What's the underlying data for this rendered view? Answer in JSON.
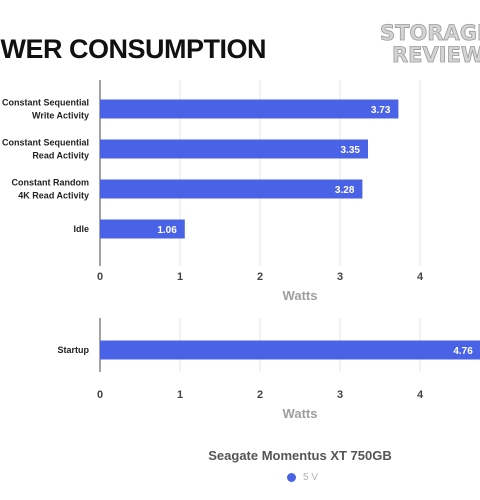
{
  "title": "OWER CONSUMPTION",
  "logo": {
    "text_top": "STORAGE",
    "text_bottom": "REVIEW.co"
  },
  "colors": {
    "bar": "#4a63e6",
    "grid": "#e6e6e6",
    "axis": "#444444"
  },
  "chart_data": [
    {
      "type": "bar",
      "orientation": "horizontal",
      "categories": [
        [
          "Constant Sequential",
          "Write Activity"
        ],
        [
          "Constant Sequential",
          "Read Activity"
        ],
        [
          "Constant Random",
          "4K Read Activity"
        ],
        [
          "Idle"
        ]
      ],
      "series": [
        {
          "name": "5 V",
          "values": [
            3.73,
            3.35,
            3.28,
            1.06
          ]
        }
      ],
      "value_labels": [
        "3.73",
        "3.35",
        "3.28",
        "1.06"
      ],
      "xlabel": "Watts",
      "xticks": [
        "0",
        "1",
        "2",
        "3",
        "4"
      ],
      "xlim": [
        0,
        4.76
      ],
      "grid": true
    },
    {
      "type": "bar",
      "orientation": "horizontal",
      "categories": [
        [
          "Startup"
        ]
      ],
      "series": [
        {
          "name": "5 V",
          "values": [
            4.76
          ]
        }
      ],
      "value_labels": [
        "4.76"
      ],
      "xlabel": "Watts",
      "xticks": [
        "0",
        "1",
        "2",
        "3",
        "4"
      ],
      "xlim": [
        0,
        4.76
      ],
      "grid": true
    }
  ],
  "chart_title": "Seagate Momentus XT 750GB",
  "legend": [
    {
      "label": "5 V",
      "color": "#4a63e6"
    }
  ]
}
